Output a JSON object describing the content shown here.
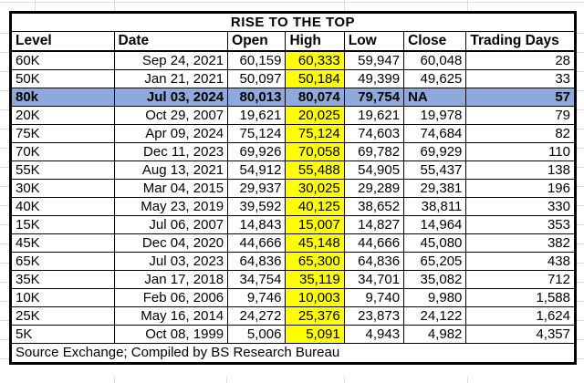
{
  "title": "RISE TO THE TOP",
  "footer": "Source Exchange; Compiled by BS Research Bureau",
  "colors": {
    "row_highlight_blue": "#8EA9DB",
    "high_cell_yellow": "#FFFF00",
    "border_black": "#000000",
    "gridline_gray": "#DCDCDC"
  },
  "chart_data": {
    "type": "table",
    "title": "RISE TO THE TOP",
    "columns": [
      "Level",
      "Date",
      "Open",
      "High",
      "Low",
      "Close",
      "Trading Days"
    ],
    "rows": [
      {
        "level": "60K",
        "date": "Sep 24, 2021",
        "open": "60,159",
        "high": "60,333",
        "low": "59,947",
        "close": "60,048",
        "trading_days": "28",
        "row_highlight": false
      },
      {
        "level": "50K",
        "date": "Jan 21, 2021",
        "open": "50,097",
        "high": "50,184",
        "low": "49,399",
        "close": "49,625",
        "trading_days": "33",
        "row_highlight": false
      },
      {
        "level": "80k",
        "date": "Jul 03, 2024",
        "open": "80,013",
        "high": "80,074",
        "low": "79,754",
        "close": "NA",
        "trading_days": "57",
        "row_highlight": true
      },
      {
        "level": "20K",
        "date": "Oct 29, 2007",
        "open": "19,621",
        "high": "20,025",
        "low": "19,621",
        "close": "19,978",
        "trading_days": "79",
        "row_highlight": false
      },
      {
        "level": "75K",
        "date": "Apr 09, 2024",
        "open": "75,124",
        "high": "75,124",
        "low": "74,603",
        "close": "74,684",
        "trading_days": "82",
        "row_highlight": false
      },
      {
        "level": "70K",
        "date": "Dec 11, 2023",
        "open": "69,926",
        "high": "70,058",
        "low": "69,782",
        "close": "69,929",
        "trading_days": "110",
        "row_highlight": false
      },
      {
        "level": "55K",
        "date": "Aug 13, 2021",
        "open": "54,912",
        "high": "55,488",
        "low": "54,905",
        "close": "55,437",
        "trading_days": "138",
        "row_highlight": false
      },
      {
        "level": "30K",
        "date": "Mar 04, 2015",
        "open": "29,937",
        "high": "30,025",
        "low": "29,289",
        "close": "29,381",
        "trading_days": "196",
        "row_highlight": false
      },
      {
        "level": "40K",
        "date": "May 23, 2019",
        "open": "39,592",
        "high": "40,125",
        "low": "38,652",
        "close": "38,811",
        "trading_days": "330",
        "row_highlight": false
      },
      {
        "level": "15K",
        "date": "Jul 06, 2007",
        "open": "14,843",
        "high": "15,007",
        "low": "14,827",
        "close": "14,964",
        "trading_days": "353",
        "row_highlight": false
      },
      {
        "level": "45K",
        "date": "Dec 04, 2020",
        "open": "44,666",
        "high": "45,148",
        "low": "44,666",
        "close": "45,080",
        "trading_days": "382",
        "row_highlight": false
      },
      {
        "level": "65K",
        "date": "Jul 03, 2023",
        "open": "64,836",
        "high": "65,300",
        "low": "64,836",
        "close": "65,205",
        "trading_days": "438",
        "row_highlight": false
      },
      {
        "level": "35K",
        "date": "Jan 17, 2018",
        "open": "34,754",
        "high": "35,119",
        "low": "34,701",
        "close": "35,082",
        "trading_days": "712",
        "row_highlight": false
      },
      {
        "level": "10K",
        "date": "Feb 06, 2006",
        "open": "9,746",
        "high": "10,003",
        "low": "9,740",
        "close": "9,980",
        "trading_days": "1,588",
        "row_highlight": false
      },
      {
        "level": "25K",
        "date": "May 16, 2014",
        "open": "24,272",
        "high": "25,376",
        "low": "23,873",
        "close": "24,122",
        "trading_days": "1,624",
        "row_highlight": false
      },
      {
        "level": "5K",
        "date": "Oct 08, 1999",
        "open": "5,006",
        "high": "5,091",
        "low": "4,943",
        "close": "4,982",
        "trading_days": "4,357",
        "row_highlight": false
      }
    ],
    "legend": "High column cells filled yellow; 80k row filled blue and bold",
    "grid": true
  }
}
